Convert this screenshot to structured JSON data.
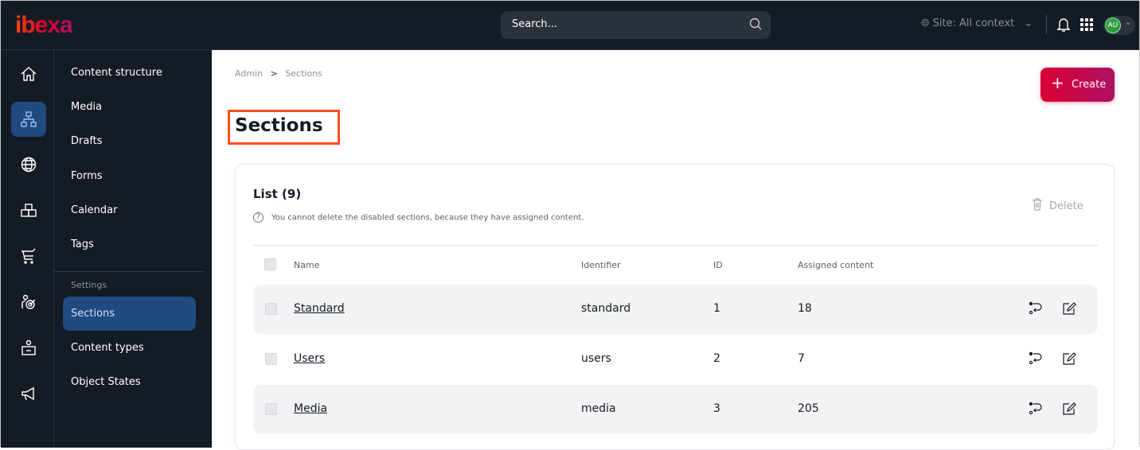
{
  "header": {
    "logo": "ibexa",
    "search_placeholder": "Search...",
    "site_label": "Site: All context",
    "avatar_initials": "AU"
  },
  "rail": {
    "icons": [
      "home-icon",
      "content-tree-icon",
      "site-globe-icon",
      "products-icon",
      "cart-icon",
      "customer-target-icon",
      "admin-icon",
      "marketing-megaphone-icon"
    ],
    "active": 1
  },
  "subnav": {
    "items": [
      "Content structure",
      "Media",
      "Drafts",
      "Forms",
      "Calendar",
      "Tags"
    ],
    "settings_label": "Settings",
    "settings_items": [
      "Sections",
      "Content types",
      "Object States"
    ],
    "active": "Sections"
  },
  "breadcrumb": [
    "Admin",
    "Sections"
  ],
  "breadcrumb_sep": ">",
  "page_title": "Sections",
  "create_label": "Create",
  "list": {
    "title": "List (9)",
    "hint": "You cannot delete the disabled sections, because they have assigned content.",
    "delete_label": "Delete",
    "columns": [
      "Name",
      "Identifier",
      "ID",
      "Assigned content"
    ],
    "rows": [
      {
        "name": "Standard",
        "identifier": "standard",
        "id": "1",
        "assigned": "18"
      },
      {
        "name": "Users",
        "identifier": "users",
        "id": "2",
        "assigned": "7"
      },
      {
        "name": "Media",
        "identifier": "media",
        "id": "3",
        "assigned": "205"
      }
    ]
  },
  "colors": {
    "accent": "#db0032",
    "nav_bg": "#151b24",
    "active_nav": "#204a80"
  }
}
